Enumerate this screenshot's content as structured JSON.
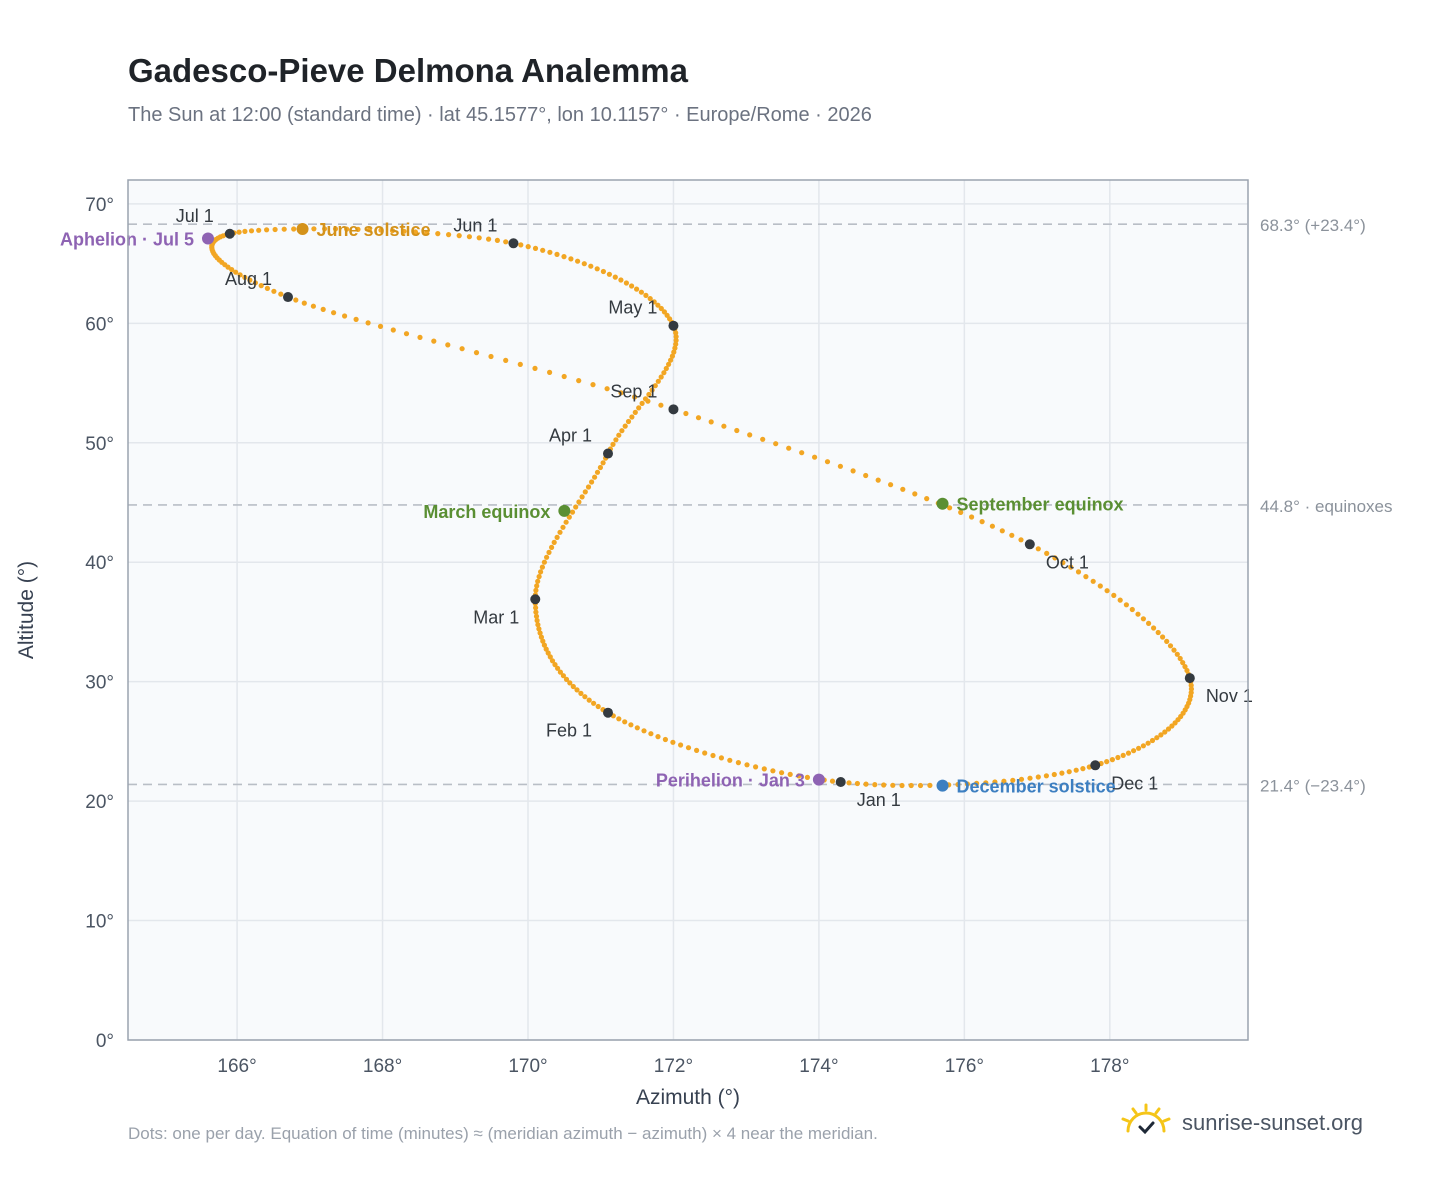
{
  "title": "Gadesco-Pieve Delmona Analemma",
  "subtitle": "The Sun at 12:00 (standard time) · lat 45.1577°, lon 10.1157° · Europe/Rome · 2026",
  "footnote": "Dots: one per day. Equation of time (minutes) ≈ (meridian azimuth − azimuth) × 4 near the meridian.",
  "brand": {
    "name": "sunrise-sunset.org",
    "icon": "sun-logo-icon"
  },
  "colors": {
    "curve": "#f2a623",
    "month_marker": "#343a40",
    "solstice_june": "#d4921a",
    "solstice_december": "#3d7fc1",
    "equinox": "#5a8f33",
    "apsis": "#8e63b3",
    "reference_line": "#b9bec6",
    "plot_bg": "#f8fafc",
    "grid": "#e3e7ec"
  },
  "chart_data": {
    "type": "scatter",
    "xlabel": "Azimuth (°)",
    "ylabel": "Altitude (°)",
    "xlim": [
      164.5,
      179.9
    ],
    "ylim": [
      0,
      72
    ],
    "xticks": [
      166,
      168,
      170,
      172,
      174,
      176,
      178
    ],
    "yticks": [
      0,
      10,
      20,
      30,
      40,
      50,
      60,
      70
    ],
    "x_tick_suffix": "°",
    "y_tick_suffix": "°",
    "grid": true,
    "reference_lines": [
      {
        "y": 68.3,
        "label": "68.3° (+23.4°)"
      },
      {
        "y": 44.8,
        "label": "44.8° · equinoxes"
      },
      {
        "y": 21.4,
        "label": "21.4° (−23.4°)"
      }
    ],
    "anchors": [
      {
        "date": "Jan 1",
        "x": 174.3,
        "y": 21.6
      },
      {
        "date": "Feb 1",
        "x": 171.1,
        "y": 27.4
      },
      {
        "date": "Mar 1",
        "x": 170.1,
        "y": 36.9
      },
      {
        "date": "Apr 1",
        "x": 171.1,
        "y": 49.1
      },
      {
        "date": "May 1",
        "x": 172.0,
        "y": 59.8
      },
      {
        "date": "Jun 1",
        "x": 169.8,
        "y": 66.7
      },
      {
        "date": "Jul 1",
        "x": 165.9,
        "y": 67.5
      },
      {
        "date": "Aug 1",
        "x": 166.7,
        "y": 62.2
      },
      {
        "date": "Sep 1",
        "x": 172.0,
        "y": 52.8
      },
      {
        "date": "Oct 1",
        "x": 176.9,
        "y": 41.5
      },
      {
        "date": "Nov 1",
        "x": 179.1,
        "y": 30.3
      },
      {
        "date": "Dec 1",
        "x": 177.8,
        "y": 23.0
      },
      {
        "date": "Jan 1",
        "x": 174.3,
        "y": 21.6
      }
    ],
    "month_markers": [
      {
        "label": "Jan 1",
        "x": 174.3,
        "y": 21.6,
        "label_pos": "below-right"
      },
      {
        "label": "Feb 1",
        "x": 171.1,
        "y": 27.4,
        "label_pos": "below-left"
      },
      {
        "label": "Mar 1",
        "x": 170.1,
        "y": 36.9,
        "label_pos": "below-left"
      },
      {
        "label": "Apr 1",
        "x": 171.1,
        "y": 49.1,
        "label_pos": "above-left"
      },
      {
        "label": "May 1",
        "x": 172.0,
        "y": 59.8,
        "label_pos": "above-left"
      },
      {
        "label": "Jun 1",
        "x": 169.8,
        "y": 66.7,
        "label_pos": "above-left"
      },
      {
        "label": "Jul 1",
        "x": 165.9,
        "y": 67.5,
        "label_pos": "above-left"
      },
      {
        "label": "Aug 1",
        "x": 166.7,
        "y": 62.2,
        "label_pos": "above-left"
      },
      {
        "label": "Sep 1",
        "x": 172.0,
        "y": 52.8,
        "label_pos": "above-left"
      },
      {
        "label": "Oct 1",
        "x": 176.9,
        "y": 41.5,
        "label_pos": "below-right"
      },
      {
        "label": "Nov 1",
        "x": 179.1,
        "y": 30.3,
        "label_pos": "below-right"
      },
      {
        "label": "Dec 1",
        "x": 177.8,
        "y": 23.0,
        "label_pos": "below-right"
      }
    ],
    "events": [
      {
        "label": "June solstice",
        "x": 166.9,
        "y": 67.9,
        "color_key": "solstice_june",
        "label_pos": "right"
      },
      {
        "label": "December solstice",
        "x": 175.7,
        "y": 21.3,
        "color_key": "solstice_december",
        "label_pos": "right"
      },
      {
        "label": "March equinox",
        "x": 170.5,
        "y": 44.3,
        "color_key": "equinox",
        "label_pos": "left"
      },
      {
        "label": "September equinox",
        "x": 175.7,
        "y": 44.9,
        "color_key": "equinox",
        "label_pos": "right"
      },
      {
        "label": "Aphelion · Jul 5",
        "x": 165.6,
        "y": 67.1,
        "color_key": "apsis",
        "label_pos": "left"
      },
      {
        "label": "Perihelion · Jan 3",
        "x": 174.0,
        "y": 21.8,
        "color_key": "apsis",
        "label_pos": "left"
      }
    ]
  }
}
